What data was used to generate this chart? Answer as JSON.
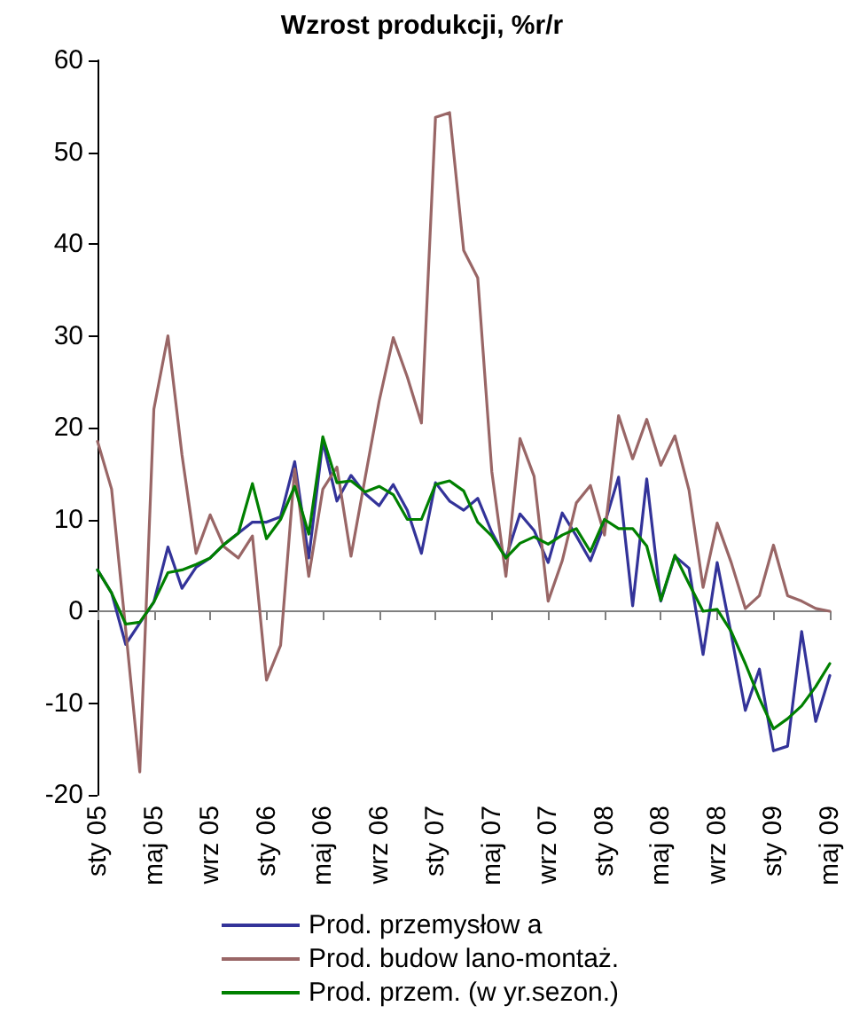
{
  "chart_data": {
    "type": "line",
    "title": "Wzrost produkcji, %r/r",
    "categories": [
      "sty 05",
      null,
      null,
      null,
      "maj 05",
      null,
      null,
      null,
      "wrz 05",
      null,
      null,
      null,
      "sty 06",
      null,
      null,
      null,
      "maj 06",
      null,
      null,
      null,
      "wrz 06",
      null,
      null,
      null,
      "sty 07",
      null,
      null,
      null,
      "maj 07",
      null,
      null,
      null,
      "wrz 07",
      null,
      null,
      null,
      "sty 08",
      null,
      null,
      null,
      "maj 08",
      null,
      null,
      null,
      "wrz 08",
      null,
      null,
      null,
      "sty 09",
      null,
      null,
      null,
      "maj 09"
    ],
    "series": [
      {
        "name": "Prod. przemysłow a",
        "color": "#333399",
        "values": [
          4.5,
          2,
          -3.6,
          -1.3,
          1,
          7,
          2.5,
          4.8,
          5.8,
          7.3,
          8.5,
          9.7,
          9.7,
          10.3,
          16.3,
          5.8,
          18.5,
          12,
          14.8,
          12.8,
          11.5,
          13.8,
          11,
          6.3,
          14,
          12,
          11,
          12.3,
          8.6,
          5.8,
          10.6,
          8.8,
          5.3,
          10.7,
          8.2,
          5.5,
          9.5,
          14.6,
          0.6,
          14.4,
          1.1,
          6,
          4.7,
          -4.7,
          5.3,
          -2.5,
          -10.8,
          -6.3,
          -15.2,
          -14.7,
          -2.2,
          -12,
          -7
        ]
      },
      {
        "name": "Prod. budow lano-montaż.",
        "color": "#996666",
        "values": [
          18.5,
          13.3,
          -2,
          -17.5,
          22,
          30,
          17,
          6.3,
          10.5,
          7,
          5.8,
          8.2,
          -7.5,
          -3.7,
          15.5,
          3.8,
          13.3,
          15.7,
          6,
          14.5,
          22.9,
          29.8,
          25.5,
          20.5,
          53.8,
          54.3,
          39.3,
          36.3,
          15.2,
          3.8,
          18.8,
          14.7,
          1.1,
          5.5,
          11.8,
          13.7,
          8.3,
          21.3,
          16.6,
          20.9,
          15.9,
          19.1,
          13.2,
          2.6,
          9.6,
          5.3,
          0.3,
          1.7,
          7.2,
          1.7,
          1.1,
          0.3,
          0
        ]
      },
      {
        "name": "Prod. przem. (w yr.sezon.)",
        "color": "#008000",
        "values": [
          4.5,
          2,
          -1.4,
          -1.2,
          1,
          4.2,
          4.5,
          5.1,
          5.8,
          7.3,
          8.5,
          13.9,
          7.9,
          10,
          13.6,
          8.4,
          19,
          14,
          14.2,
          13,
          13.6,
          12.7,
          10,
          10,
          13.8,
          14.2,
          13.1,
          9.7,
          8.2,
          5.8,
          7.4,
          8.1,
          7.3,
          8.3,
          9,
          6.5,
          10,
          9,
          9,
          7.1,
          1.2,
          6.1,
          3,
          0,
          0.2,
          -2.2,
          -5.7,
          -9.5,
          -12.8,
          -11.7,
          -10.3,
          -8.2,
          -5.7
        ]
      }
    ],
    "ylim": [
      -20,
      60
    ],
    "yticks": [
      -20,
      -10,
      0,
      10,
      20,
      30,
      40,
      50,
      60
    ],
    "legend": "bottom",
    "marker": "none",
    "line_style": "solid"
  }
}
